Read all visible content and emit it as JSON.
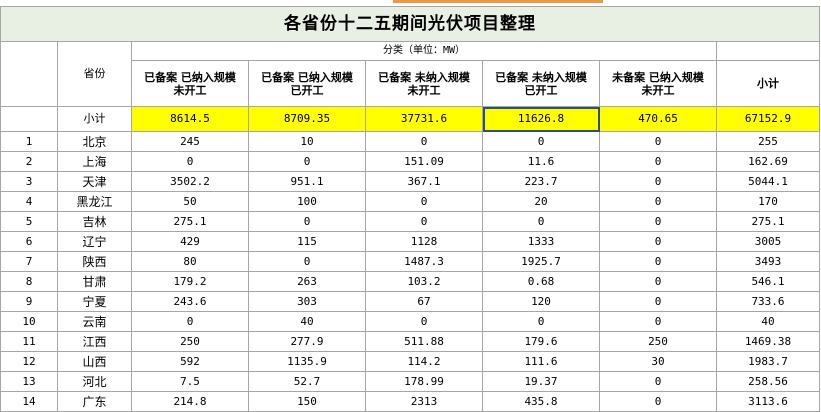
{
  "title": "各省份十二五期间光伏项目整理",
  "header": {
    "province_label": "省份",
    "group_label": "分类（单位：MW）",
    "categories": [
      [
        "已备案 已纳入规模",
        "未开工"
      ],
      [
        "已备案 已纳入规模",
        "已开工"
      ],
      [
        "已备案 未纳入规模",
        "未开工"
      ],
      [
        "已备案 未纳入规模",
        "已开工"
      ],
      [
        "未备案 已纳入规模",
        "未开工"
      ]
    ],
    "total_label": "小计"
  },
  "subtotal": {
    "label": "小计",
    "values": [
      "8614.5",
      "8709.35",
      "37731.6",
      "11626.8",
      "470.65",
      "67152.9"
    ]
  },
  "rows": [
    {
      "idx": "1",
      "province": "北京",
      "values": [
        "245",
        "10",
        "0",
        "0",
        "0",
        "255"
      ]
    },
    {
      "idx": "2",
      "province": "上海",
      "values": [
        "0",
        "0",
        "151.09",
        "11.6",
        "0",
        "162.69"
      ]
    },
    {
      "idx": "3",
      "province": "天津",
      "values": [
        "3502.2",
        "951.1",
        "367.1",
        "223.7",
        "0",
        "5044.1"
      ]
    },
    {
      "idx": "4",
      "province": "黑龙江",
      "values": [
        "50",
        "100",
        "0",
        "20",
        "0",
        "170"
      ]
    },
    {
      "idx": "5",
      "province": "吉林",
      "values": [
        "275.1",
        "0",
        "0",
        "0",
        "0",
        "275.1"
      ]
    },
    {
      "idx": "6",
      "province": "辽宁",
      "values": [
        "429",
        "115",
        "1128",
        "1333",
        "0",
        "3005"
      ]
    },
    {
      "idx": "7",
      "province": "陕西",
      "values": [
        "80",
        "0",
        "1487.3",
        "1925.7",
        "0",
        "3493"
      ]
    },
    {
      "idx": "8",
      "province": "甘肃",
      "values": [
        "179.2",
        "263",
        "103.2",
        "0.68",
        "0",
        "546.1"
      ]
    },
    {
      "idx": "9",
      "province": "宁夏",
      "values": [
        "243.6",
        "303",
        "67",
        "120",
        "0",
        "733.6"
      ]
    },
    {
      "idx": "10",
      "province": "云南",
      "values": [
        "0",
        "40",
        "0",
        "0",
        "0",
        "40"
      ]
    },
    {
      "idx": "11",
      "province": "江西",
      "values": [
        "250",
        "277.9",
        "511.88",
        "179.6",
        "250",
        "1469.38"
      ]
    },
    {
      "idx": "12",
      "province": "山西",
      "values": [
        "592",
        "1135.9",
        "114.2",
        "111.6",
        "30",
        "1983.7"
      ]
    },
    {
      "idx": "13",
      "province": "河北",
      "values": [
        "7.5",
        "52.7",
        "178.99",
        "19.37",
        "0",
        "258.56"
      ]
    },
    {
      "idx": "14",
      "province": "广东",
      "values": [
        "214.8",
        "150",
        "2313",
        "435.8",
        "0",
        "3113.6"
      ]
    }
  ],
  "colors": {
    "subtotal_fill": "#ffff00",
    "title_fill": "#e8efe3",
    "selection_border": "#2b4e8c"
  }
}
